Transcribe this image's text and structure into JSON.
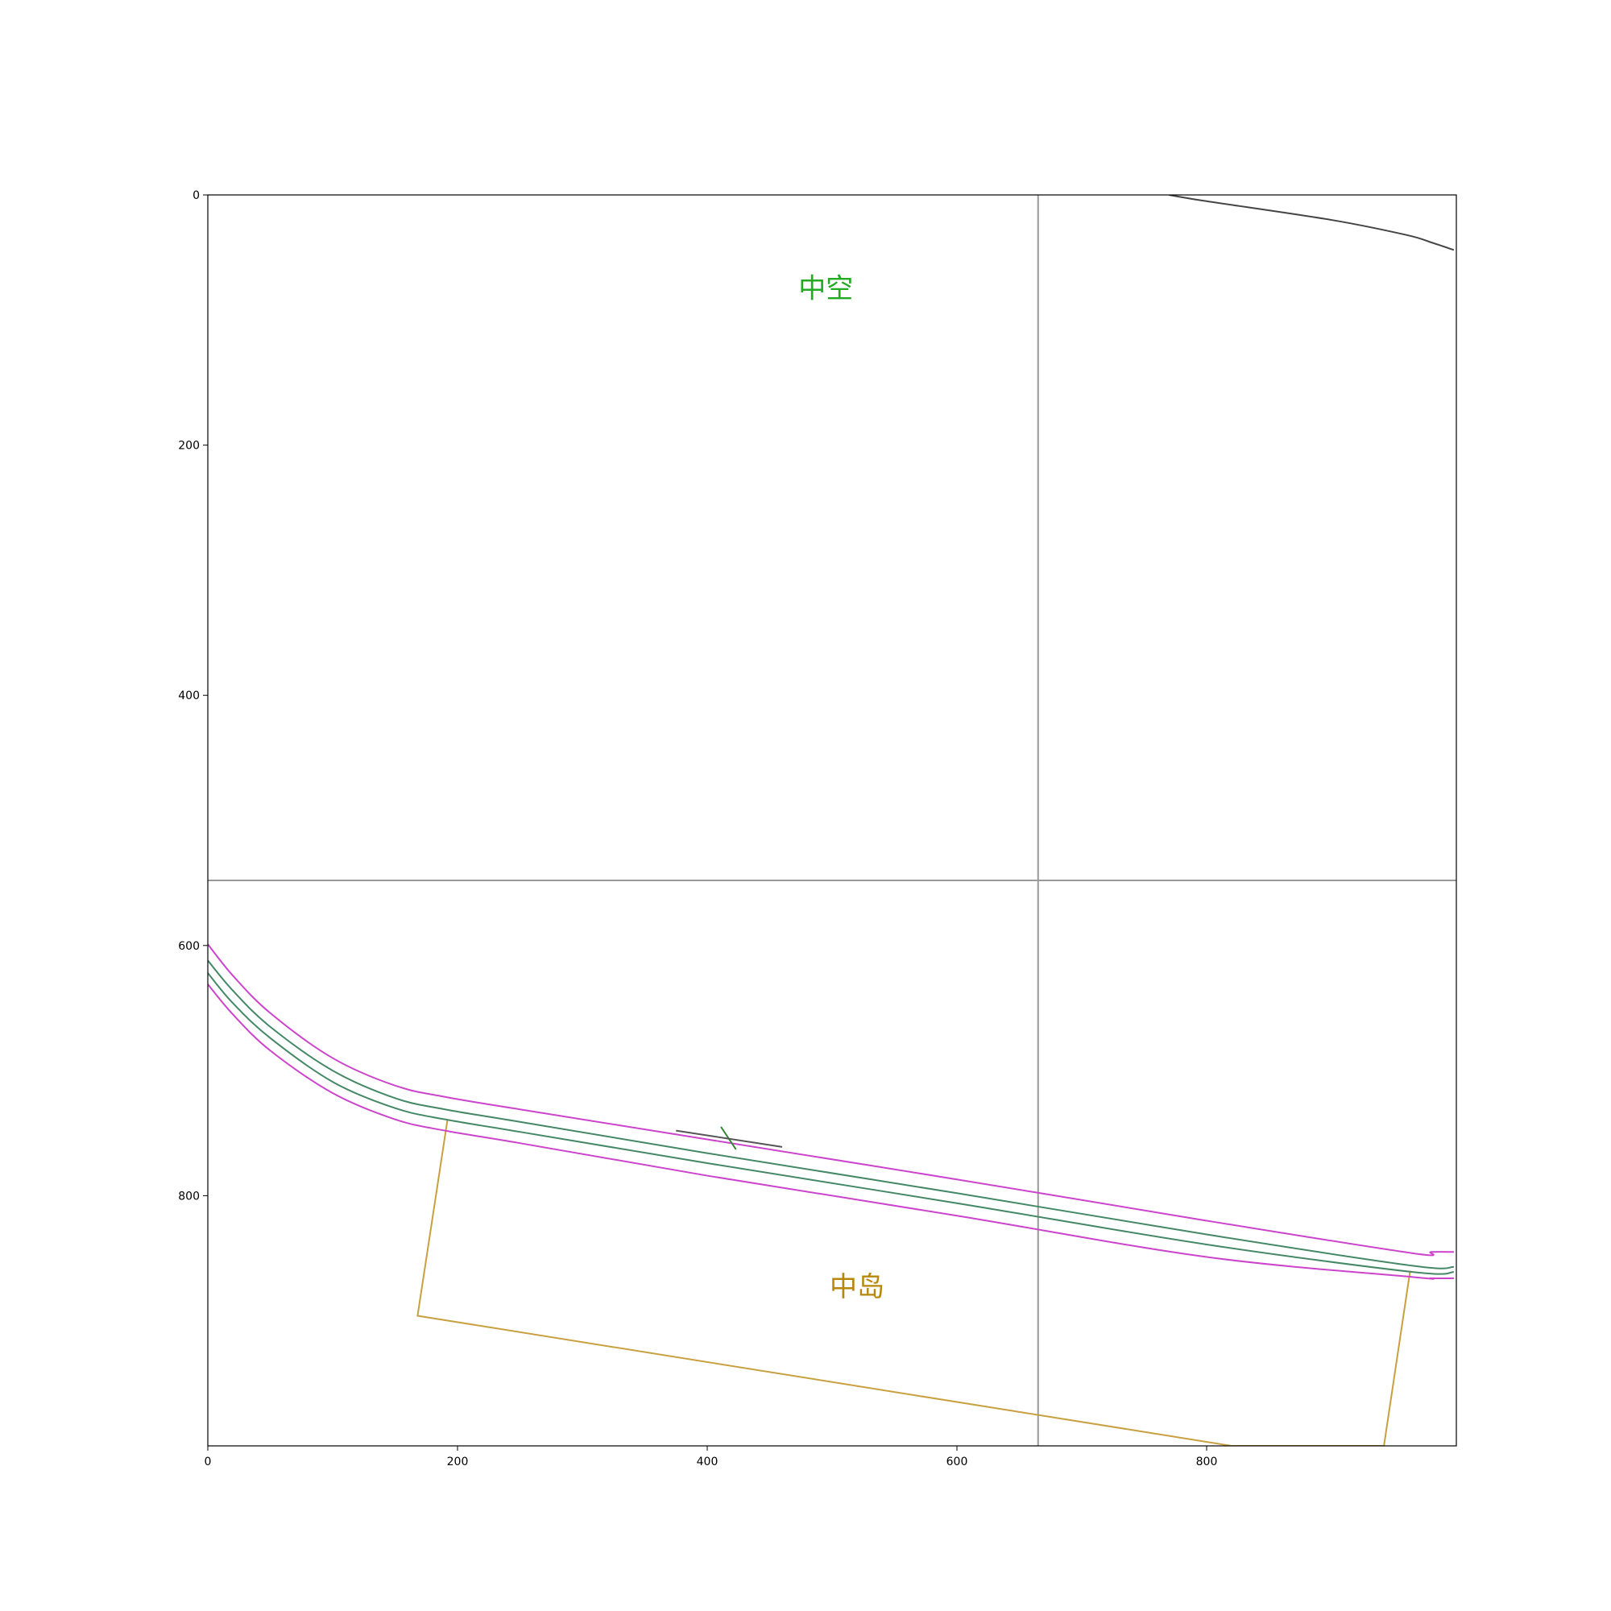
{
  "chart_data": {
    "type": "line",
    "title": "",
    "xlabel": "",
    "ylabel": "",
    "xlim": [
      0,
      1000
    ],
    "ylim": [
      1000,
      0
    ],
    "y_axis_inverted": true,
    "x_ticks": [
      0,
      200,
      400,
      600,
      800
    ],
    "y_ticks": [
      0,
      200,
      400,
      600,
      800
    ],
    "grid": false,
    "region_labels": [
      {
        "text": "中空",
        "x": 495,
        "y": 76,
        "color": "#22aa22"
      },
      {
        "text": "中岛",
        "x": 520,
        "y": 874,
        "color": "#b8860b"
      }
    ],
    "reference_lines": [
      {
        "orientation": "vertical",
        "value": 665,
        "color": "#999999"
      },
      {
        "orientation": "horizontal",
        "value": 548,
        "color": "#999999"
      }
    ],
    "series": [
      {
        "role": "lane-outer-top",
        "color": "#cc44cc",
        "points": [
          [
            0,
            599
          ],
          [
            20,
            624
          ],
          [
            50,
            654
          ],
          [
            100,
            690
          ],
          [
            150,
            712
          ],
          [
            190,
            721
          ],
          [
            250,
            731
          ],
          [
            400,
            755
          ],
          [
            600,
            787
          ],
          [
            800,
            820
          ],
          [
            965,
            846
          ],
          [
            980,
            845
          ],
          [
            998,
            845
          ]
        ]
      },
      {
        "role": "lane-inner-top",
        "color": "#448866",
        "points": [
          [
            0,
            612
          ],
          [
            20,
            636
          ],
          [
            50,
            665
          ],
          [
            100,
            700
          ],
          [
            150,
            722
          ],
          [
            190,
            731
          ],
          [
            250,
            741
          ],
          [
            400,
            766
          ],
          [
            600,
            798
          ],
          [
            800,
            831
          ],
          [
            965,
            856
          ],
          [
            998,
            857
          ]
        ]
      },
      {
        "role": "lane-inner-bottom",
        "color": "#448866",
        "points": [
          [
            0,
            622
          ],
          [
            20,
            646
          ],
          [
            50,
            674
          ],
          [
            100,
            709
          ],
          [
            150,
            730
          ],
          [
            190,
            739
          ],
          [
            250,
            749
          ],
          [
            400,
            774
          ],
          [
            600,
            806
          ],
          [
            800,
            839
          ],
          [
            965,
            861
          ],
          [
            998,
            861
          ]
        ]
      },
      {
        "role": "lane-outer-bottom",
        "color": "#cc44cc",
        "points": [
          [
            0,
            631
          ],
          [
            20,
            655
          ],
          [
            50,
            684
          ],
          [
            100,
            718
          ],
          [
            150,
            739
          ],
          [
            190,
            748
          ],
          [
            250,
            758
          ],
          [
            400,
            784
          ],
          [
            600,
            816
          ],
          [
            800,
            849
          ],
          [
            965,
            865
          ],
          [
            980,
            866
          ],
          [
            998,
            866
          ]
        ]
      },
      {
        "role": "boundary-top-right",
        "color": "#444444",
        "points": [
          [
            770,
            0
          ],
          [
            800,
            5
          ],
          [
            900,
            20
          ],
          [
            960,
            32
          ],
          [
            980,
            38
          ],
          [
            998,
            44
          ]
        ]
      },
      {
        "role": "marker-stroke",
        "color": "#338833",
        "points": [
          [
            411,
            745
          ],
          [
            423,
            763
          ]
        ]
      },
      {
        "role": "marker-line",
        "color": "#555555",
        "points": [
          [
            375,
            748
          ],
          [
            460,
            761
          ]
        ]
      }
    ],
    "polygons": [
      {
        "role": "island-box",
        "color": "#c8a040",
        "points": [
          [
            192,
            739
          ],
          [
            168,
            896
          ],
          [
            820,
            1000
          ],
          [
            942,
            1000
          ],
          [
            963,
            860
          ]
        ]
      }
    ]
  }
}
